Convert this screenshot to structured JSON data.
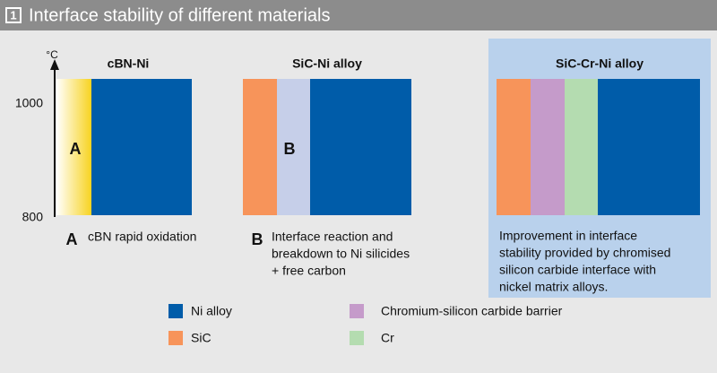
{
  "header": {
    "number": "1",
    "title": "Interface stability of different materials"
  },
  "axis": {
    "unit": "°C",
    "ticks": [
      "1000",
      "800"
    ]
  },
  "panels": [
    {
      "title": "cBN-Ni",
      "label": "A",
      "caption_marker": "A",
      "caption": [
        "cBN rapid oxidation"
      ]
    },
    {
      "title": "SiC-Ni alloy",
      "label": "B",
      "caption_marker": "B",
      "caption": [
        "Interface reaction and",
        "breakdown to Ni silicides",
        "+ free carbon"
      ]
    },
    {
      "title": "SiC-Cr-Ni alloy",
      "caption": [
        "Improvement in interface",
        "stability provided by chromised",
        "silicon carbide interface with",
        "nickel matrix alloys."
      ]
    }
  ],
  "legend": [
    "Ni alloy",
    "SiC",
    "Chromium-silicon carbide barrier",
    "Cr"
  ]
}
